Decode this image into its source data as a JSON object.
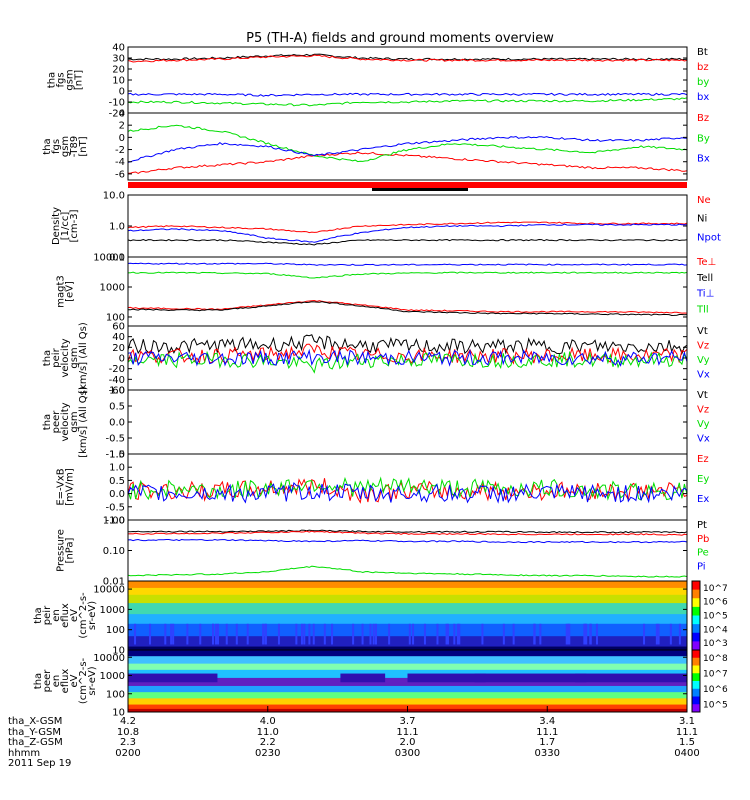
{
  "title": "P5 (TH-A) fields and ground moments overview",
  "colors": {
    "black": "#000000",
    "red": "#ff0000",
    "green": "#00dd00",
    "blue": "#0000ff"
  },
  "chart_data": [
    {
      "type": "line",
      "panel": "fgs",
      "ylabel": [
        "tha",
        "fgs",
        "gsm",
        "[nT]"
      ],
      "yticks": [
        "40",
        "30",
        "20",
        "10",
        "0",
        "-10",
        "-20"
      ],
      "ylim": [
        -20,
        40
      ],
      "series": [
        {
          "name": "Bt",
          "color": "black",
          "values": [
            29,
            29,
            30,
            32,
            33,
            30,
            29,
            29,
            29,
            29,
            29,
            29,
            29
          ]
        },
        {
          "name": "bz",
          "color": "red",
          "values": [
            27,
            28,
            29,
            31,
            32,
            29,
            28,
            28,
            28,
            28,
            28,
            28,
            28
          ]
        },
        {
          "name": "by",
          "color": "green",
          "values": [
            -10,
            -10,
            -11,
            -12,
            -13,
            -10,
            -10,
            -9,
            -9,
            -9,
            -9,
            -8,
            -7
          ]
        },
        {
          "name": "bx",
          "color": "blue",
          "values": [
            -3,
            -3,
            -3,
            -4,
            -3,
            -3,
            -3,
            -3,
            -3,
            -3,
            -3,
            -3,
            -3
          ]
        }
      ]
    },
    {
      "type": "line",
      "panel": "fgs_t89",
      "ylabel": [
        "tha",
        "fgs",
        "gsm",
        "-T89",
        "[nT]"
      ],
      "yticks": [
        "4",
        "2",
        "0",
        "-2",
        "-4",
        "-6"
      ],
      "ylim": [
        -7,
        4
      ],
      "series": [
        {
          "name": "Bz",
          "color": "red",
          "values": [
            -6,
            -5,
            -4.5,
            -4,
            -3,
            -2.5,
            -3,
            -3.5,
            -4,
            -4.5,
            -5,
            -5,
            -5.5
          ]
        },
        {
          "name": "By",
          "color": "green",
          "values": [
            1,
            2,
            1,
            -1,
            -3,
            -4,
            -2,
            -1,
            -1.5,
            -2,
            -2.5,
            -1.5,
            -2
          ]
        },
        {
          "name": "Bx",
          "color": "blue",
          "values": [
            -4,
            -2,
            -1,
            -1.5,
            -3,
            -2,
            -1,
            -0.5,
            0,
            0,
            -0.5,
            -0.5,
            0
          ]
        }
      ]
    },
    {
      "type": "line",
      "panel": "density",
      "log": true,
      "ylabel": [
        "Density",
        "[1/cc]",
        "[cm-3]"
      ],
      "yticks": [
        "10.0",
        "1.0",
        "0.1"
      ],
      "ylim": [
        0.1,
        10
      ],
      "series": [
        {
          "name": "Ne",
          "color": "red",
          "values": [
            0.9,
            1.0,
            0.9,
            0.8,
            0.6,
            1.0,
            1.1,
            1.2,
            1.3,
            1.3,
            1.2,
            1.2,
            1.2
          ]
        },
        {
          "name": "Ni",
          "color": "black",
          "values": [
            0.35,
            0.35,
            0.35,
            0.3,
            0.25,
            0.35,
            0.35,
            0.35,
            0.35,
            0.35,
            0.35,
            0.35,
            0.35
          ]
        },
        {
          "name": "Npot",
          "color": "blue",
          "values": [
            0.7,
            0.8,
            0.7,
            0.4,
            0.3,
            0.6,
            0.9,
            1.0,
            1.0,
            1.1,
            1.1,
            1.1,
            1.1
          ]
        }
      ]
    },
    {
      "type": "line",
      "panel": "temperature",
      "log": true,
      "ylabel": [
        "magt3",
        "[eV]"
      ],
      "yticks": [
        "10000",
        "1000",
        "100"
      ],
      "ylim": [
        50,
        10000
      ],
      "series": [
        {
          "name": "Te⊥",
          "color": "red",
          "values": [
            200,
            190,
            180,
            250,
            350,
            250,
            170,
            160,
            150,
            150,
            150,
            145,
            140
          ]
        },
        {
          "name": "Tell",
          "color": "black",
          "values": [
            180,
            170,
            170,
            230,
            330,
            230,
            150,
            140,
            130,
            130,
            125,
            120,
            115
          ]
        },
        {
          "name": "Ti⊥",
          "color": "blue",
          "values": [
            6000,
            6000,
            6000,
            6000,
            5500,
            5500,
            5500,
            5600,
            5600,
            5600,
            5600,
            5600,
            5600
          ]
        },
        {
          "name": "Tll",
          "color": "green",
          "values": [
            3000,
            3000,
            2900,
            2800,
            2000,
            2700,
            2900,
            3000,
            3000,
            3000,
            3000,
            3000,
            3000
          ]
        }
      ]
    },
    {
      "type": "line",
      "panel": "peir_velocity",
      "ylabel": [
        "tha",
        "peir",
        "velocity",
        "gsm",
        "[km/s] (All Qs)"
      ],
      "yticks": [
        "60",
        "40",
        "20",
        "0",
        "-20",
        "-40",
        "-60"
      ],
      "ylim": [
        -60,
        60
      ],
      "series": [
        {
          "name": "Vt",
          "color": "black",
          "values": [
            22,
            22,
            24,
            25,
            30,
            24,
            22,
            22,
            22,
            22,
            22,
            22,
            22
          ]
        },
        {
          "name": "Vz",
          "color": "red",
          "values": [
            5,
            4,
            5,
            6,
            15,
            5,
            4,
            4,
            4,
            4,
            4,
            4,
            4
          ]
        },
        {
          "name": "Vy",
          "color": "green",
          "values": [
            -3,
            -4,
            -3,
            -5,
            -15,
            -4,
            -4,
            -3,
            -4,
            -3,
            -4,
            -3,
            -4
          ]
        },
        {
          "name": "Vx",
          "color": "blue",
          "values": [
            0,
            0,
            0,
            0,
            2,
            0,
            0,
            0,
            0,
            0,
            0,
            0,
            0
          ]
        }
      ]
    },
    {
      "type": "line",
      "panel": "peer_velocity",
      "ylabel": [
        "tha",
        "peer",
        "velocity",
        "gsm",
        "[km/s] (All Qs)"
      ],
      "yticks": [
        "1.0",
        "0.5",
        "0.0",
        "-0.5",
        "-1.0"
      ],
      "ylim": [
        -1,
        1
      ],
      "series": [
        {
          "name": "Vt",
          "color": "black",
          "values": []
        },
        {
          "name": "Vz",
          "color": "red",
          "values": []
        },
        {
          "name": "Vy",
          "color": "green",
          "values": []
        },
        {
          "name": "Vx",
          "color": "blue",
          "values": []
        }
      ]
    },
    {
      "type": "line",
      "panel": "efield",
      "ylabel": [
        "E=-VxB",
        "[mV/m]"
      ],
      "yticks": [
        "1.5",
        "1.0",
        "0.5",
        "0.0",
        "-0.5",
        "-1.0"
      ],
      "ylim": [
        -1,
        1.5
      ],
      "series": [
        {
          "name": "Ez",
          "color": "red",
          "values": [
            0.1,
            0.1,
            0.1,
            0.2,
            0.3,
            0.0,
            0.1,
            0.1,
            0.1,
            0.1,
            0.1,
            0.1,
            0.1
          ]
        },
        {
          "name": "Ey",
          "color": "green",
          "values": [
            0.1,
            0.2,
            0.1,
            0.2,
            0.4,
            0.2,
            0.3,
            0.2,
            0.2,
            0.2,
            0.1,
            0.1,
            0.1
          ]
        },
        {
          "name": "Ex",
          "color": "blue",
          "values": [
            0.0,
            0.0,
            0.0,
            0.0,
            0.1,
            0.0,
            0.0,
            0.0,
            0.0,
            0.0,
            0.0,
            0.0,
            0.0
          ]
        }
      ]
    },
    {
      "type": "line",
      "panel": "pressure",
      "log": true,
      "ylabel": [
        "Pressure",
        "[nPa]"
      ],
      "yticks": [
        "1.00",
        "0.10",
        "0.01"
      ],
      "ylim": [
        0.01,
        1
      ],
      "series": [
        {
          "name": "Pt",
          "color": "black",
          "values": [
            0.42,
            0.42,
            0.42,
            0.43,
            0.45,
            0.42,
            0.41,
            0.41,
            0.41,
            0.4,
            0.4,
            0.4,
            0.4
          ]
        },
        {
          "name": "Pb",
          "color": "red",
          "values": [
            0.35,
            0.36,
            0.37,
            0.39,
            0.42,
            0.37,
            0.35,
            0.35,
            0.34,
            0.34,
            0.34,
            0.34,
            0.33
          ]
        },
        {
          "name": "Pe",
          "color": "green",
          "values": [
            0.015,
            0.016,
            0.017,
            0.02,
            0.03,
            0.02,
            0.018,
            0.017,
            0.016,
            0.015,
            0.015,
            0.014,
            0.014
          ]
        },
        {
          "name": "Pi",
          "color": "blue",
          "values": [
            0.22,
            0.22,
            0.22,
            0.21,
            0.2,
            0.21,
            0.2,
            0.2,
            0.19,
            0.19,
            0.19,
            0.19,
            0.19
          ]
        }
      ]
    },
    {
      "type": "heatmap",
      "panel": "peir_eflux",
      "log": true,
      "ylabel": [
        "tha",
        "peir",
        "en",
        "eflux",
        "eV",
        "(cm^2-s-",
        "sr-eV)"
      ],
      "yticks": [
        "10000",
        "1000",
        "100",
        "10"
      ],
      "ylim": [
        10,
        25000
      ],
      "colorbar": {
        "ticks": [
          "10^7",
          "10^6",
          "10^5",
          "10^4",
          "10^3"
        ]
      }
    },
    {
      "type": "heatmap",
      "panel": "peer_eflux",
      "log": true,
      "ylabel": [
        "tha",
        "peer",
        "en",
        "eflux",
        "eV",
        "(cm^2-s-",
        "sr-eV)"
      ],
      "yticks": [
        "10000",
        "1000",
        "100",
        "10"
      ],
      "ylim": [
        10,
        25000
      ],
      "colorbar": {
        "ticks": [
          "10^8",
          "10^7",
          "10^6",
          "10^5"
        ]
      }
    }
  ],
  "x_axis": {
    "row_labels": [
      "tha_X-GSM",
      "tha_Y-GSM",
      "tha_Z-GSM",
      "hhmm",
      "2011 Sep 19"
    ],
    "ticks": [
      {
        "x": "4.2",
        "y": "10.8",
        "z": "2.3",
        "t": "0200"
      },
      {
        "x": "4.0",
        "y": "11.0",
        "z": "2.2",
        "t": "0230"
      },
      {
        "x": "3.7",
        "y": "11.1",
        "z": "2.0",
        "t": "0300"
      },
      {
        "x": "3.4",
        "y": "11.1",
        "z": "1.7",
        "t": "0330"
      },
      {
        "x": "3.1",
        "y": "11.1",
        "z": "1.5",
        "t": "0400"
      }
    ]
  }
}
